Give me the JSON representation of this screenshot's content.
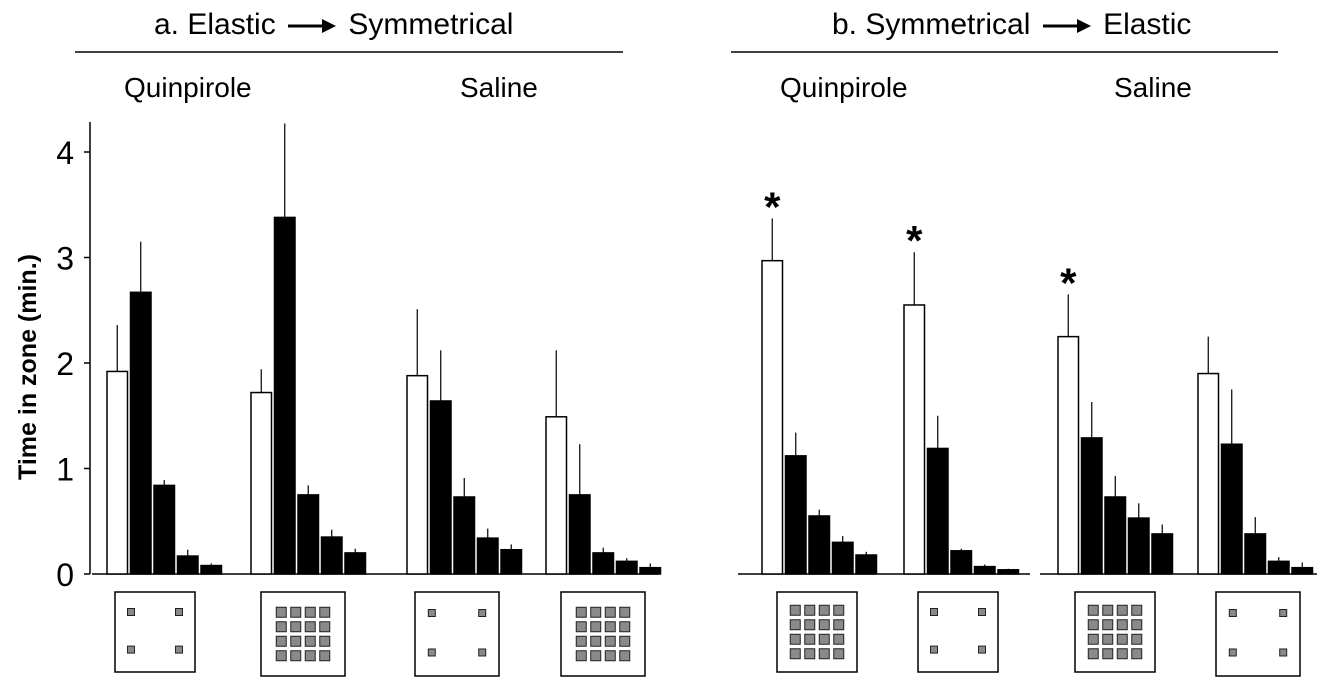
{
  "chart_data": {
    "type": "bar",
    "ylabel": "Time in zone (min.)",
    "ylim": [
      0,
      4.3
    ],
    "yticks": [
      0,
      1,
      2,
      3,
      4
    ],
    "series_colors": {
      "first_bar": "#ffffff",
      "other_bars": "#000000"
    },
    "significance_marker": "*",
    "panels": [
      {
        "title_prefix": "a. Elastic",
        "title_suffix": "Symmetrical",
        "groups": [
          {
            "label": "Quinpirole",
            "subgroups": [
              {
                "icon": "4-square-tile",
                "values": [
                  1.92,
                  2.67,
                  0.84,
                  0.17,
                  0.08
                ],
                "errors": [
                  0.44,
                  0.48,
                  0.05,
                  0.06,
                  0.02
                ],
                "significant": false
              },
              {
                "icon": "16-square-tile",
                "values": [
                  1.72,
                  3.38,
                  0.75,
                  0.35,
                  0.2
                ],
                "errors": [
                  0.22,
                  0.89,
                  0.09,
                  0.07,
                  0.04
                ],
                "significant": false
              }
            ]
          },
          {
            "label": "Saline",
            "subgroups": [
              {
                "icon": "4-square-tile",
                "values": [
                  1.88,
                  1.64,
                  0.73,
                  0.34,
                  0.23
                ],
                "errors": [
                  0.63,
                  0.48,
                  0.18,
                  0.09,
                  0.05
                ],
                "significant": false
              },
              {
                "icon": "16-square-tile",
                "values": [
                  1.49,
                  0.75,
                  0.2,
                  0.12,
                  0.06
                ],
                "errors": [
                  0.63,
                  0.48,
                  0.05,
                  0.03,
                  0.04
                ],
                "significant": false
              }
            ]
          }
        ]
      },
      {
        "title_prefix": "b. Symmetrical",
        "title_suffix": "Elastic",
        "groups": [
          {
            "label": "Quinpirole",
            "subgroups": [
              {
                "icon": "16-square-tile",
                "values": [
                  2.97,
                  1.12,
                  0.55,
                  0.3,
                  0.18
                ],
                "errors": [
                  0.4,
                  0.22,
                  0.06,
                  0.06,
                  0.03
                ],
                "significant": true
              },
              {
                "icon": "4-square-tile",
                "values": [
                  2.55,
                  1.19,
                  0.22,
                  0.07,
                  0.04
                ],
                "errors": [
                  0.5,
                  0.31,
                  0.02,
                  0.02,
                  0.01
                ],
                "significant": true
              }
            ]
          },
          {
            "label": "Saline",
            "subgroups": [
              {
                "icon": "16-square-tile",
                "values": [
                  2.25,
                  1.29,
                  0.73,
                  0.53,
                  0.38
                ],
                "errors": [
                  0.4,
                  0.34,
                  0.2,
                  0.14,
                  0.09
                ],
                "significant": true
              },
              {
                "icon": "4-square-tile",
                "values": [
                  1.9,
                  1.23,
                  0.38,
                  0.12,
                  0.06
                ],
                "errors": [
                  0.35,
                  0.52,
                  0.16,
                  0.04,
                  0.05
                ],
                "significant": false
              }
            ]
          }
        ]
      }
    ]
  }
}
